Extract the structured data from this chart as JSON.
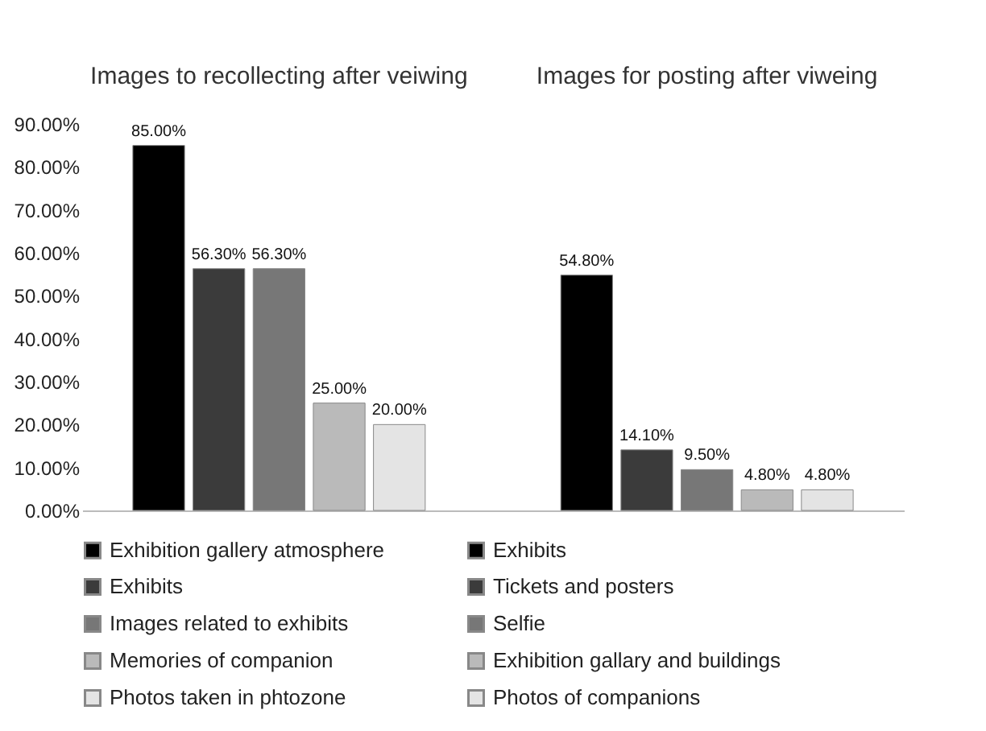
{
  "chart_data": {
    "type": "bar",
    "categories": [
      null,
      null
    ],
    "annotations": [
      "Images to recollecting after veiwing",
      "Images for posting after viweing"
    ],
    "ylim": [
      0,
      90
    ],
    "yticks": [
      {
        "value": 0,
        "label": "0.00%"
      },
      {
        "value": 10,
        "label": "10.00%"
      },
      {
        "value": 20,
        "label": "20.00%"
      },
      {
        "value": 30,
        "label": "30.00%"
      },
      {
        "value": 40,
        "label": "40.00%"
      },
      {
        "value": 50,
        "label": "50.00%"
      },
      {
        "value": 60,
        "label": "60.00%"
      },
      {
        "value": 70,
        "label": "70.00%"
      },
      {
        "value": 80,
        "label": "80.00%"
      },
      {
        "value": 90,
        "label": "90.00%"
      }
    ],
    "grid": false,
    "legend": "bottom",
    "tick_labels": "y",
    "series": [
      {
        "name": "Exhibition gallery atmosphere",
        "color": "#000000",
        "values": [
          85,
          null
        ],
        "value_labels": [
          "85.00%",
          null
        ]
      },
      {
        "name": "Exhibits",
        "color": "#3b3b3b",
        "values": [
          56.3,
          null
        ],
        "value_labels": [
          "56.30%",
          null
        ]
      },
      {
        "name": "Images related to exhibits",
        "color": "#777777",
        "values": [
          56.3,
          null
        ],
        "value_labels": [
          "56.30%",
          null
        ]
      },
      {
        "name": "Memories of companion",
        "color": "#bababa",
        "values": [
          25,
          null
        ],
        "value_labels": [
          "25.00%",
          null
        ]
      },
      {
        "name": "Photos taken in phtozone",
        "color": "#e4e4e4",
        "values": [
          20,
          null
        ],
        "value_labels": [
          "20.00%",
          null
        ]
      },
      {
        "name": "Exhibits",
        "color": "#000000",
        "values": [
          null,
          54.8
        ],
        "value_labels": [
          null,
          "54.80%"
        ]
      },
      {
        "name": "Tickets and posters",
        "color": "#3b3b3b",
        "values": [
          null,
          14.1
        ],
        "value_labels": [
          null,
          "14.10%"
        ]
      },
      {
        "name": "Selfie",
        "color": "#777777",
        "values": [
          null,
          9.5
        ],
        "value_labels": [
          null,
          "9.50%"
        ]
      },
      {
        "name": "Exhibition gallary and buildings",
        "color": "#bababa",
        "values": [
          null,
          4.8
        ],
        "value_labels": [
          null,
          "4.80%"
        ]
      },
      {
        "name": "Photos of companions",
        "color": "#e4e4e4",
        "values": [
          null,
          4.8
        ],
        "value_labels": [
          null,
          "4.80%"
        ]
      }
    ]
  }
}
